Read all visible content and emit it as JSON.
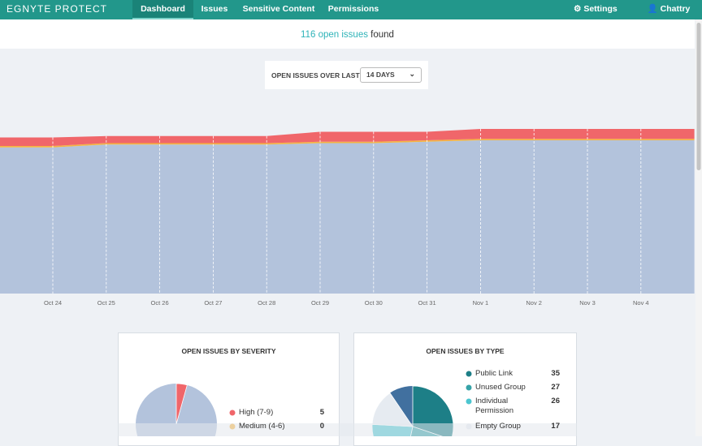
{
  "nav": {
    "logo": "EGNYTE PROTECT",
    "tabs": [
      "Dashboard",
      "Issues",
      "Sensitive Content",
      "Permissions"
    ],
    "settings": "Settings",
    "user": "Chattry Singh"
  },
  "summary": {
    "count": 116,
    "label": "open issues",
    "suffix": "found"
  },
  "range": {
    "label": "OPEN ISSUES OVER LAST",
    "selected": "14 DAYS"
  },
  "chart_data": {
    "type": "area",
    "stacked": true,
    "categories": [
      null,
      "Oct 24",
      "Oct 25",
      "Oct 26",
      "Oct 27",
      "Oct 28",
      "Oct 29",
      "Oct 30",
      "Oct 31",
      "Nov 1",
      "Nov 2",
      "Nov 3",
      "Nov 4",
      null
    ],
    "series": [
      {
        "color": "#b3c3dc",
        "values": [
          103,
          103,
          105,
          105,
          105,
          105,
          106,
          106,
          107,
          108,
          108,
          108,
          108,
          108
        ]
      },
      {
        "color": "#f5b342",
        "values": [
          1,
          1,
          1,
          1,
          1,
          1,
          1,
          1,
          1,
          1,
          1,
          1,
          1,
          1
        ]
      },
      {
        "color": "#f0666a",
        "values": [
          6,
          6,
          5,
          5,
          5,
          5,
          7,
          7,
          6,
          7,
          7,
          7,
          7,
          7
        ]
      }
    ]
  },
  "severity": {
    "type": "pie",
    "title": "OPEN ISSUES BY SEVERITY",
    "rest_color": "#b3c3dc",
    "items": [
      {
        "name": "High (7-9)",
        "value": 5,
        "color": "#f0666a"
      },
      {
        "name": "Medium (4-6)",
        "value": 0,
        "color": "#f5b342"
      }
    ]
  },
  "by_type": {
    "type": "pie",
    "title": "OPEN ISSUES BY TYPE",
    "rest_color": "#41709f",
    "items": [
      {
        "name": "Public Link",
        "value": 35,
        "color": "#1d7f87"
      },
      {
        "name": "Unused Group",
        "value": 27,
        "color": "#36a3a8"
      },
      {
        "name": "Individual Permission",
        "value": 26,
        "color": "#4cc6d0"
      },
      {
        "name": "Empty Group",
        "value": 17,
        "color": "#e6ebf1"
      }
    ]
  }
}
